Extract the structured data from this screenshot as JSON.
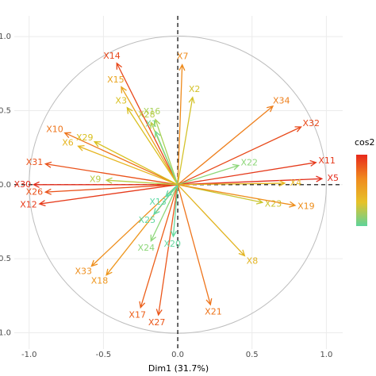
{
  "chart_data": {
    "type": "pca-variables",
    "x_label": "Dim1 (31.7%)",
    "legend_title": "cos2",
    "legend_gradient": [
      "#E8291C",
      "#F08A1E",
      "#E6C229",
      "#5ED39A"
    ],
    "xlim": [
      -1.1,
      1.11
    ],
    "ylim": [
      -1.11,
      1.14
    ],
    "xticks": [
      {
        "value": -1,
        "label": "-1.0"
      },
      {
        "value": -0.5,
        "label": "-0.5"
      },
      {
        "value": 0,
        "label": "0.0"
      },
      {
        "value": 0.5,
        "label": "0.5"
      },
      {
        "value": 1,
        "label": "1.0"
      }
    ],
    "yticks": [
      {
        "value": -1,
        "label": "-1.0"
      },
      {
        "value": -0.5,
        "label": "-0.5"
      },
      {
        "value": 0,
        "label": "0.0"
      },
      {
        "value": 0.5,
        "label": "0.5"
      },
      {
        "value": 1,
        "label": "1.0"
      }
    ],
    "grid": true,
    "variables": [
      {
        "name": "X7",
        "x": 0.03,
        "y": 0.81,
        "color": "#EE8A1B"
      },
      {
        "name": "X14",
        "x": -0.41,
        "y": 0.82,
        "color": "#E8471A"
      },
      {
        "name": "X15",
        "x": -0.38,
        "y": 0.66,
        "color": "#E9A41E"
      },
      {
        "name": "X3",
        "x": -0.34,
        "y": 0.52,
        "color": "#D9C020"
      },
      {
        "name": "X16",
        "x": -0.15,
        "y": 0.44,
        "color": "#A8D257"
      },
      {
        "name": "X28",
        "x": -0.18,
        "y": 0.42,
        "color": "#B9CC46"
      },
      {
        "name": "X1",
        "x": -0.15,
        "y": 0.36,
        "color": "#7BD88E"
      },
      {
        "name": "X2",
        "x": 0.1,
        "y": 0.59,
        "color": "#D4C22A"
      },
      {
        "name": "X34",
        "x": 0.64,
        "y": 0.53,
        "color": "#EE7F1C"
      },
      {
        "name": "X32",
        "x": 0.83,
        "y": 0.39,
        "color": "#E84A1B"
      },
      {
        "name": "X11",
        "x": 0.93,
        "y": 0.15,
        "color": "#E53A1B"
      },
      {
        "name": "X5",
        "x": 0.97,
        "y": 0.04,
        "color": "#E32D1B"
      },
      {
        "name": "X4",
        "x": 0.72,
        "y": 0.01,
        "color": "#E6B51F"
      },
      {
        "name": "X22",
        "x": 0.41,
        "y": 0.13,
        "color": "#8ED77A"
      },
      {
        "name": "X23",
        "x": 0.57,
        "y": -0.12,
        "color": "#C9C52F"
      },
      {
        "name": "X19",
        "x": 0.79,
        "y": -0.14,
        "color": "#EE8E1C"
      },
      {
        "name": "X8",
        "x": 0.45,
        "y": -0.48,
        "color": "#E2B421"
      },
      {
        "name": "X21",
        "x": 0.22,
        "y": -0.81,
        "color": "#EE741B"
      },
      {
        "name": "X27",
        "x": -0.13,
        "y": -0.88,
        "color": "#EB561A"
      },
      {
        "name": "X17",
        "x": -0.25,
        "y": -0.83,
        "color": "#EC5F1A"
      },
      {
        "name": "X18",
        "x": -0.48,
        "y": -0.61,
        "color": "#EE961C"
      },
      {
        "name": "X33",
        "x": -0.58,
        "y": -0.55,
        "color": "#EE8E1C"
      },
      {
        "name": "X24",
        "x": -0.18,
        "y": -0.38,
        "color": "#8ED77A"
      },
      {
        "name": "X20",
        "x": -0.03,
        "y": -0.35,
        "color": "#66D9A0"
      },
      {
        "name": "X25",
        "x": -0.16,
        "y": -0.2,
        "color": "#60D8A0"
      },
      {
        "name": "X13",
        "x": -0.08,
        "y": -0.08,
        "color": "#5CD9A5"
      },
      {
        "name": "X12",
        "x": -0.93,
        "y": -0.13,
        "color": "#E63B1B"
      },
      {
        "name": "X26",
        "x": -0.89,
        "y": -0.05,
        "color": "#EA521A"
      },
      {
        "name": "X30",
        "x": -0.97,
        "y": 0.0,
        "color": "#E32D1B"
      },
      {
        "name": "X31",
        "x": -0.89,
        "y": 0.14,
        "color": "#EA521A"
      },
      {
        "name": "X10",
        "x": -0.76,
        "y": 0.35,
        "color": "#EE741B"
      },
      {
        "name": "X6",
        "x": -0.67,
        "y": 0.26,
        "color": "#E6B51F"
      },
      {
        "name": "X29",
        "x": -0.56,
        "y": 0.29,
        "color": "#D9C020"
      },
      {
        "name": "X9",
        "x": -0.48,
        "y": 0.03,
        "color": "#B9CC46"
      }
    ]
  }
}
